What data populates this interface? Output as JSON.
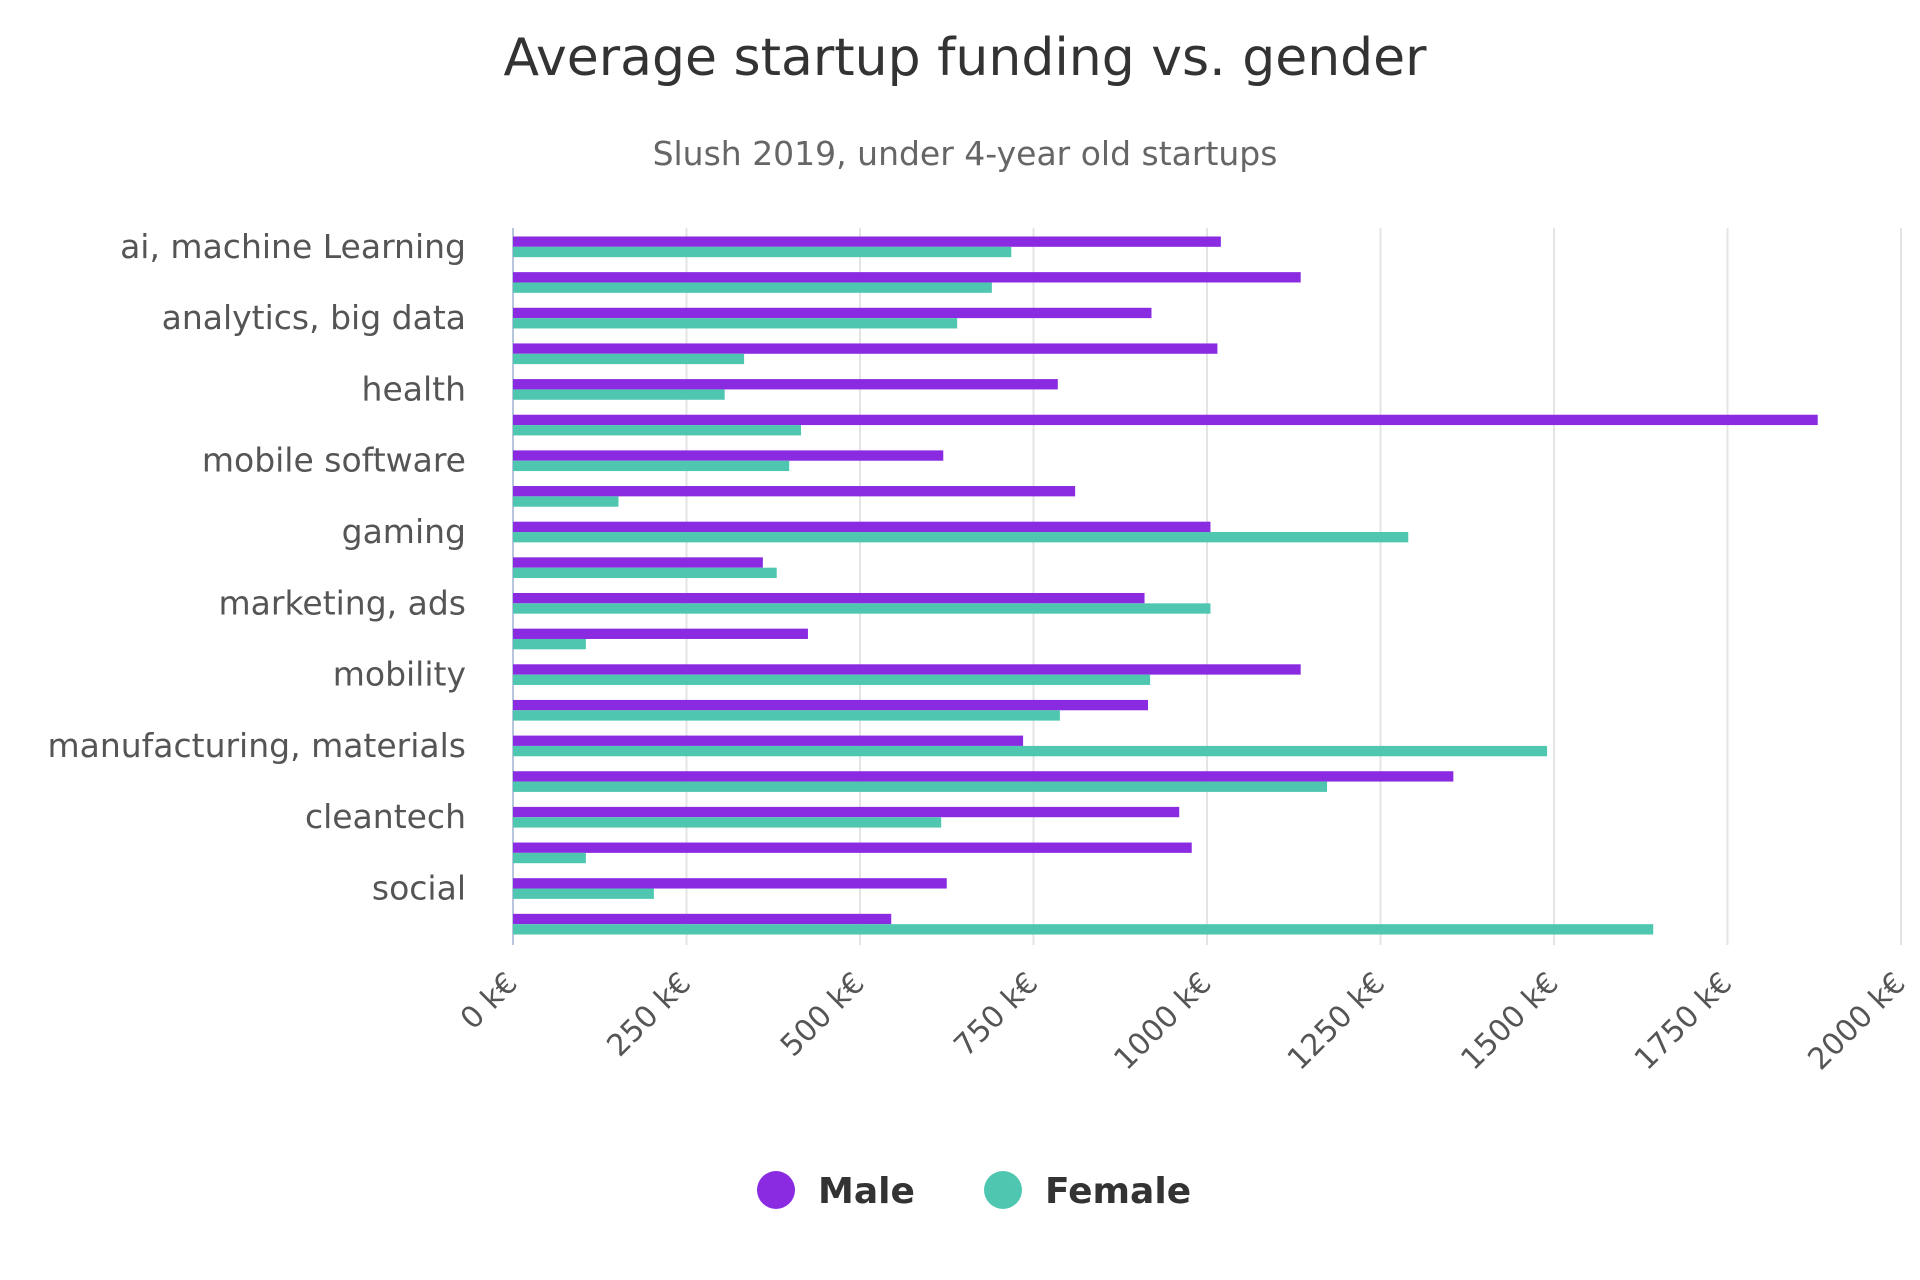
{
  "chart_data": {
    "type": "bar",
    "orientation": "horizontal",
    "title": "Average startup funding vs. gender",
    "subtitle": "Slush 2019, under 4-year old startups",
    "xlim": [
      0,
      2000
    ],
    "xticks": [
      "0 k€",
      "250 k€",
      "500 k€",
      "750 k€",
      "1000 k€",
      "1250 k€",
      "1500 k€",
      "1750 k€",
      "2000 k€"
    ],
    "xtick_values": [
      0,
      250,
      500,
      750,
      1000,
      1250,
      1500,
      1750,
      2000
    ],
    "grid": "vertical",
    "legend_position": "bottom",
    "categories": [
      "ai, machine Learning",
      "",
      "analytics, big data",
      "",
      "health",
      "",
      "mobile software",
      "",
      "gaming",
      "",
      "marketing, ads",
      "",
      "mobility",
      "",
      "manufacturing, materials",
      "",
      "cleantech",
      "",
      "social",
      ""
    ],
    "series": [
      {
        "name": "Male",
        "color": "#8a2be2",
        "values": [
          1020,
          1135,
          920,
          1015,
          785,
          1880,
          620,
          810,
          1005,
          360,
          910,
          425,
          1135,
          915,
          735,
          1355,
          960,
          978,
          625,
          545
        ]
      },
      {
        "name": "Female",
        "color": "#4fc7b0",
        "values": [
          718,
          690,
          640,
          333,
          305,
          415,
          398,
          152,
          1290,
          380,
          1005,
          105,
          918,
          788,
          1490,
          1173,
          617,
          105,
          203,
          1643
        ]
      }
    ]
  }
}
